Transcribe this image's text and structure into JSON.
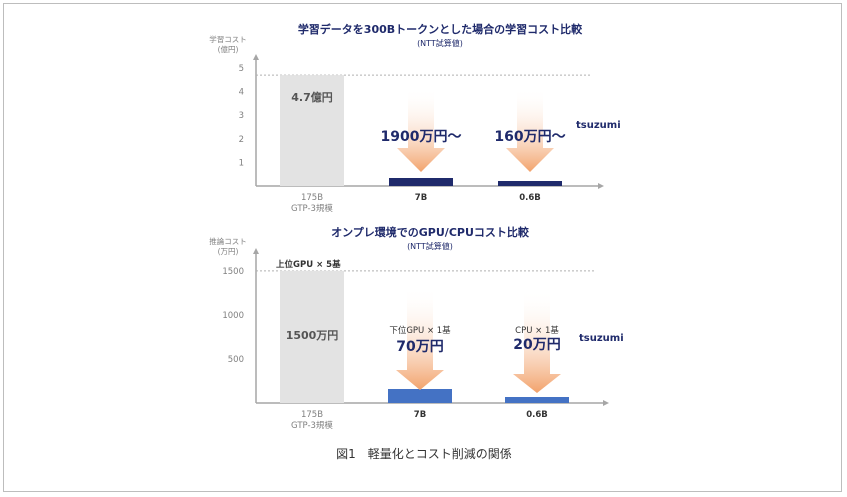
{
  "chart_data": [
    {
      "type": "bar",
      "title": "学習データを300Bトークンとした場合の学習コスト比較",
      "subtitle": "(NTT試算値)",
      "ylabel": "学習コスト (億円)",
      "yticks": [
        "1",
        "2",
        "3",
        "4",
        "5"
      ],
      "ylim": [
        0,
        5
      ],
      "reference_line": 4.7,
      "categories": [
        "175B\nGTP-3規模",
        "7B",
        "0.6B"
      ],
      "category_lines": [
        [
          "175B",
          "GTP-3規模"
        ],
        [
          "7B"
        ],
        [
          "0.6B"
        ]
      ],
      "values": [
        4.7,
        0.19,
        0.016
      ],
      "bar_labels": [
        "4.7億円",
        "1900万円〜",
        "160万円〜"
      ],
      "brand_label": "tsuzumi",
      "colors": {
        "baseline": "#e3e3e3",
        "model": "#1f2a6b",
        "arrow": "#f2a26b",
        "axis": "#a6a6a6"
      }
    },
    {
      "type": "bar",
      "title": "オンプレ環境でのGPU/CPUコスト比較",
      "subtitle": "(NTT試算値)",
      "ylabel": "推論コスト (万円)",
      "yticks": [
        "500",
        "1000",
        "1500"
      ],
      "ylim": [
        0,
        1600
      ],
      "reference_line": 1500,
      "reference_label": "上位GPU × 5基",
      "categories": [
        "175B\nGTP-3規模",
        "7B",
        "0.6B"
      ],
      "category_lines": [
        [
          "175B",
          "GTP-3規模"
        ],
        [
          "7B"
        ],
        [
          "0.6B"
        ]
      ],
      "values": [
        1500,
        70,
        20
      ],
      "bar_labels": [
        "1500万円",
        "70万円",
        "20万円"
      ],
      "hardware_labels": [
        "",
        "下位GPU × 1基",
        "CPU × 1基"
      ],
      "brand_label": "tsuzumi",
      "colors": {
        "baseline": "#e3e3e3",
        "model": "#4472c4",
        "arrow": "#f2a26b",
        "axis": "#a6a6a6"
      }
    }
  ],
  "caption": "図1　軽量化とコスト削減の関係"
}
